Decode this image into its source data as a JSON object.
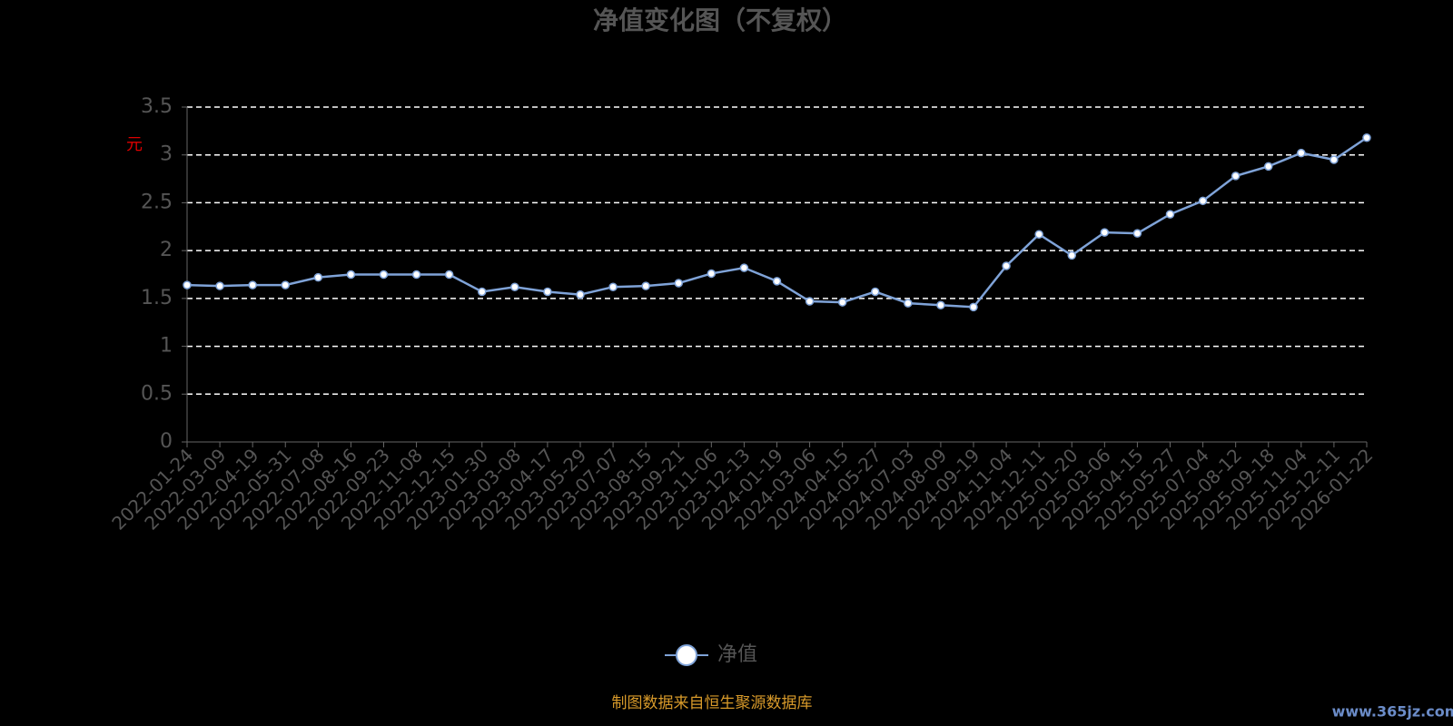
{
  "chart_data": {
    "type": "line",
    "title": "净值变化图（不复权）",
    "y_label": "元",
    "categories": [
      "2022-01-24",
      "2022-03-09",
      "2022-04-19",
      "2022-05-31",
      "2022-07-08",
      "2022-08-16",
      "2022-09-23",
      "2022-11-08",
      "2022-12-15",
      "2023-01-30",
      "2023-03-08",
      "2023-04-17",
      "2023-05-29",
      "2023-07-07",
      "2023-08-15",
      "2023-09-21",
      "2023-11-06",
      "2023-12-13",
      "2024-01-19",
      "2024-03-06",
      "2024-04-15",
      "2024-05-27",
      "2024-07-03",
      "2024-08-09",
      "2024-09-19",
      "2024-11-04",
      "2024-12-11",
      "2025-01-20",
      "2025-03-06",
      "2025-04-15",
      "2025-05-27",
      "2025-07-04",
      "2025-08-12",
      "2025-09-18",
      "2025-11-04",
      "2025-12-11",
      "2026-01-22"
    ],
    "series": [
      {
        "name": "净值",
        "color": "#7fa3d8",
        "values": [
          1.64,
          1.63,
          1.64,
          1.64,
          1.72,
          1.75,
          1.75,
          1.75,
          1.75,
          1.57,
          1.62,
          1.57,
          1.54,
          1.62,
          1.63,
          1.66,
          1.76,
          1.82,
          1.68,
          1.47,
          1.46,
          1.57,
          1.45,
          1.43,
          1.41,
          1.84,
          2.17,
          1.95,
          2.19,
          2.18,
          2.38,
          2.52,
          2.78,
          2.88,
          3.02,
          2.95,
          3.18
        ]
      }
    ],
    "ylim": [
      0,
      3.5
    ],
    "yticks": [
      0,
      0.5,
      1,
      1.5,
      2,
      2.5,
      3,
      3.5
    ],
    "grid": true,
    "footer": "制图数据来自恒生聚源数据库",
    "watermark": "www.365jz.com"
  }
}
